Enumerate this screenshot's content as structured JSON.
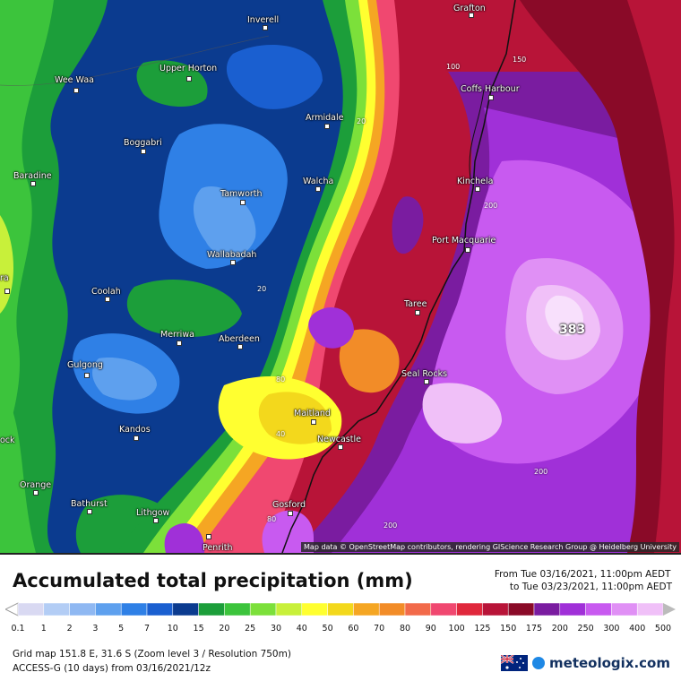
{
  "map": {
    "towns": [
      {
        "name": "Grafton",
        "dot": true
      },
      {
        "name": "Inverell",
        "dot": true
      },
      {
        "name": "Upper Horton",
        "dot": true
      },
      {
        "name": "Wee Waa",
        "dot": true
      },
      {
        "name": "Coffs Harbour",
        "dot": true
      },
      {
        "name": "Armidale",
        "dot": true
      },
      {
        "name": "Boggabri",
        "dot": true
      },
      {
        "name": "Baradine",
        "dot": true
      },
      {
        "name": "Walcha",
        "dot": true
      },
      {
        "name": "Tamworth",
        "dot": true
      },
      {
        "name": "Kinchela",
        "dot": true
      },
      {
        "name": "Port Macquarie",
        "dot": true
      },
      {
        "name": "Wallabadah",
        "dot": true
      },
      {
        "name": "Coolah",
        "dot": true
      },
      {
        "name": "Taree",
        "dot": true
      },
      {
        "name": "Merriwa",
        "dot": true
      },
      {
        "name": "Aberdeen",
        "dot": true
      },
      {
        "name": "Gulgong",
        "dot": true
      },
      {
        "name": "Seal Rocks",
        "dot": true
      },
      {
        "name": "Maitland",
        "dot": true
      },
      {
        "name": "Kandos",
        "dot": true
      },
      {
        "name": "Newcastle",
        "dot": true
      },
      {
        "name": "Orange",
        "dot": true
      },
      {
        "name": "Bathurst",
        "dot": true
      },
      {
        "name": "Lithgow",
        "dot": true
      },
      {
        "name": "Gosford",
        "dot": true
      },
      {
        "name": "Penrith",
        "dot": true
      },
      {
        "name": "ra",
        "dot": true
      },
      {
        "name": "ock",
        "dot": false
      }
    ],
    "contour_labels": [
      "100",
      "150",
      "20",
      "200",
      "20",
      "80",
      "40",
      "80",
      "200",
      "200"
    ],
    "max_value": "383",
    "attribution": "Map data © OpenStreetMap contributors, rendering GIScience Research Group @ Heidelberg University"
  },
  "header": {
    "title": "Accumulated total precipitation (mm)",
    "period_from": "From Tue 03/16/2021, 11:00pm AEDT",
    "period_to": "to Tue 03/23/2021, 11:00pm AEDT"
  },
  "legend": {
    "ticks": [
      "0.1",
      "1",
      "2",
      "3",
      "5",
      "7",
      "10",
      "15",
      "20",
      "25",
      "30",
      "40",
      "50",
      "60",
      "70",
      "80",
      "90",
      "100",
      "125",
      "150",
      "175",
      "200",
      "250",
      "300",
      "400",
      "500"
    ],
    "colors": [
      "#d9d9f2",
      "#b3cdf5",
      "#8fb8f2",
      "#5ea0ee",
      "#2f80e6",
      "#1a5fd0",
      "#0b3b8f",
      "#1c9e3a",
      "#3cc43c",
      "#7ce03a",
      "#c8f03a",
      "#ffff30",
      "#f3d81c",
      "#f5a623",
      "#f28c28",
      "#f26a4a",
      "#f04870",
      "#e0283c",
      "#b81438",
      "#8a0a28",
      "#7a1ca0",
      "#a030d8",
      "#c85af0",
      "#e090f5",
      "#f0c0f8",
      "#f8e0fc",
      "#e8e8e8",
      "#bbbbbb"
    ]
  },
  "footer": {
    "line1": "Grid map 151.8 E, 31.6 S (Zoom level 3 / Resolution 750m)",
    "line2": "ACCESS-G (10 days) from 03/16/2021/12z",
    "brand": "meteologix.com"
  }
}
